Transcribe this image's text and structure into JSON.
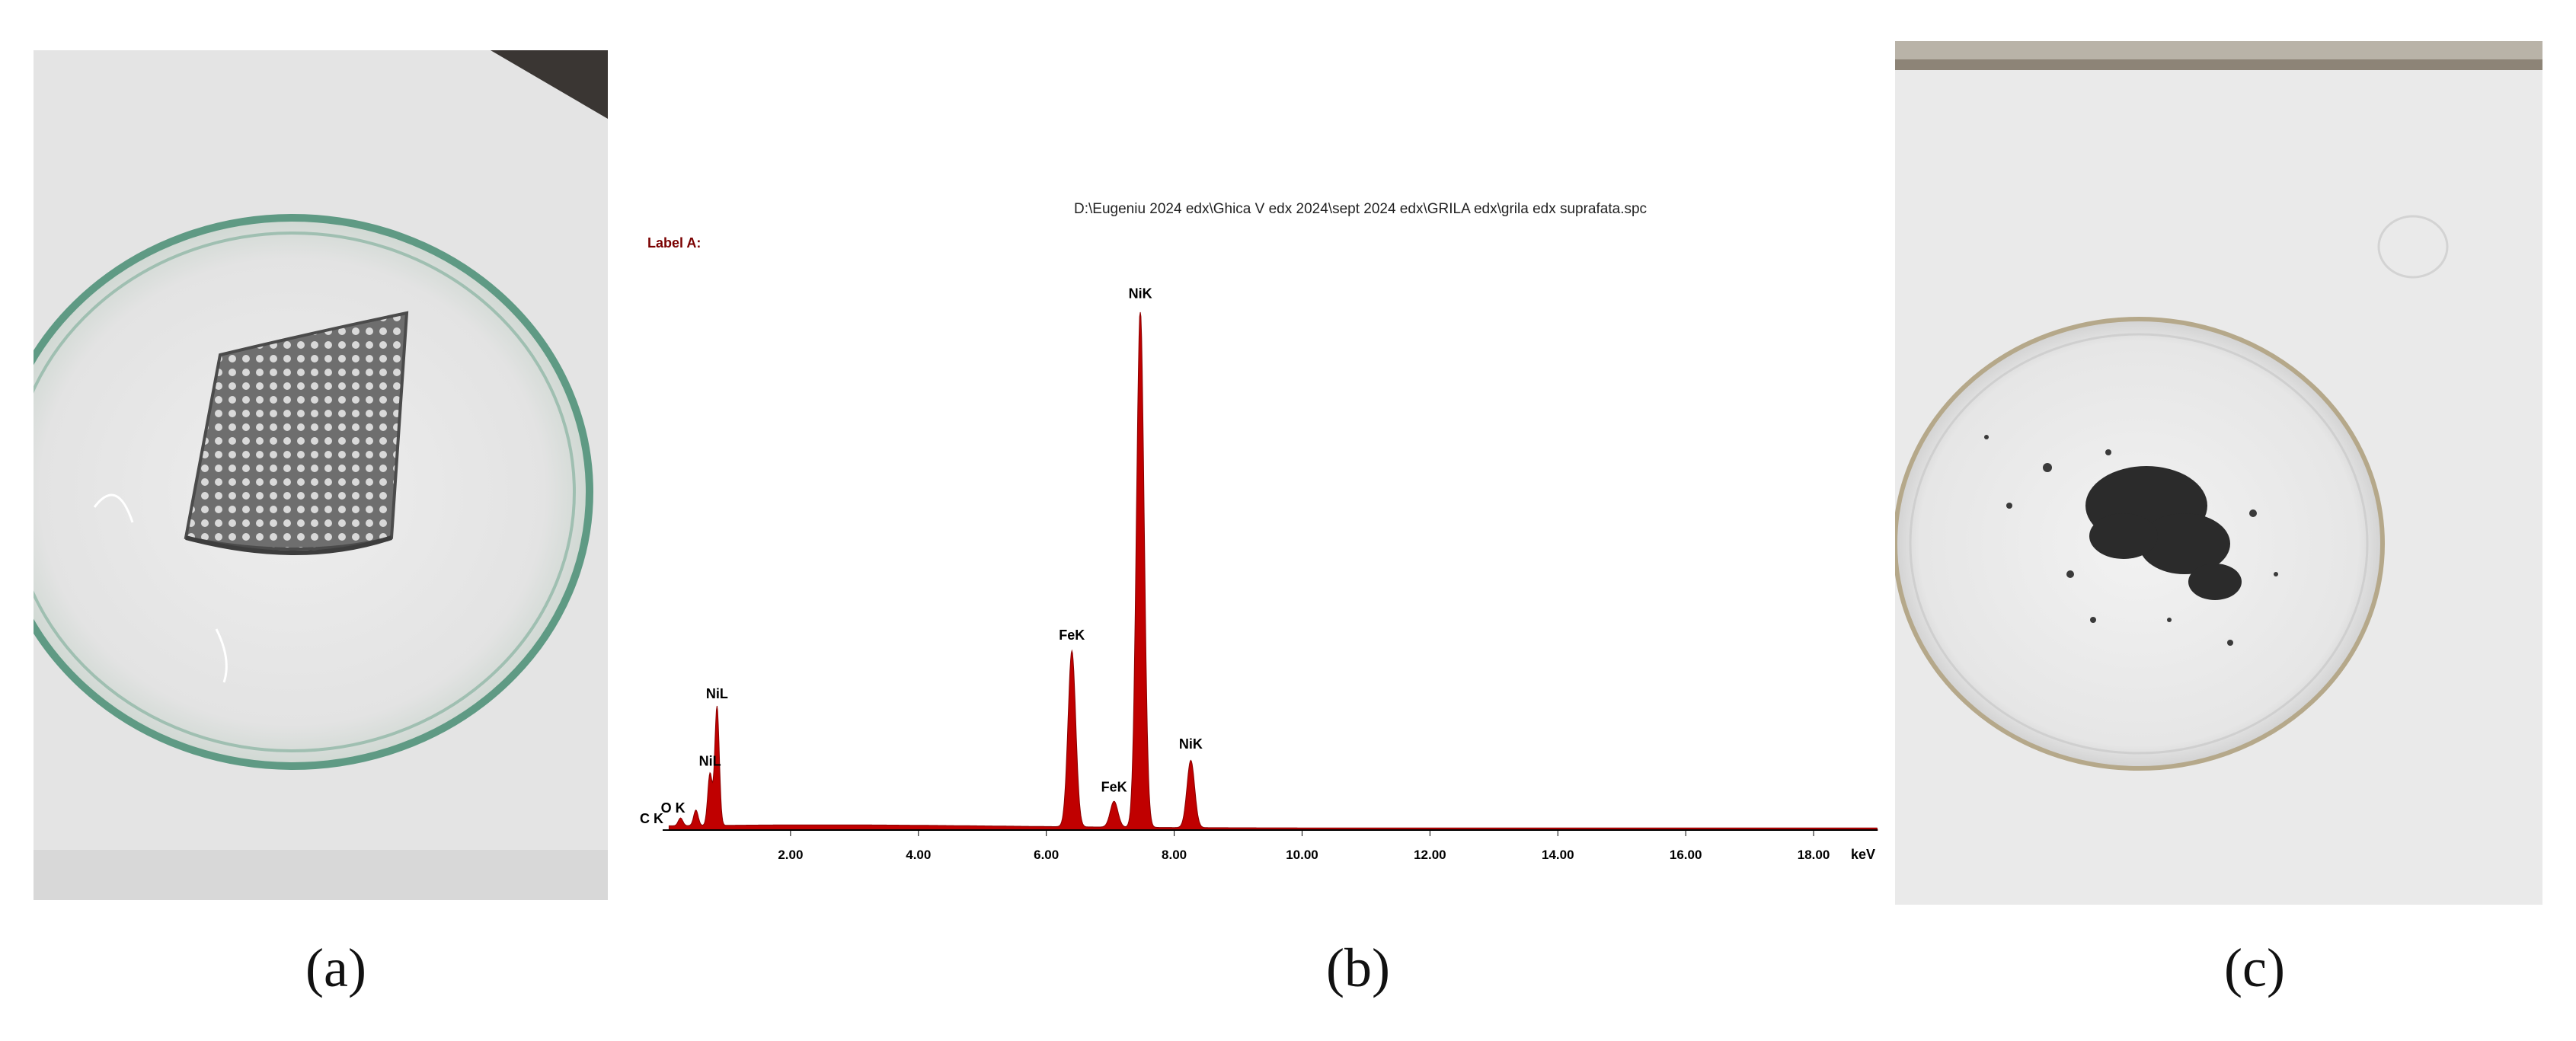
{
  "figure": {
    "captions": [
      "(a)",
      "(b)",
      "(c)"
    ]
  },
  "chart_data": {
    "type": "area",
    "title": "D:\\Eugeniu 2024 edx\\Ghica V edx 2024\\sept 2024 edx\\GRILA edx\\grila edx suprafata.spc",
    "label": "Label A:",
    "xlabel": "keV",
    "ylabel": "",
    "xlim": [
      0,
      19.0
    ],
    "ylim": [
      0,
      1.0
    ],
    "grid": false,
    "legend": "none",
    "x_ticks": [
      "2.00",
      "4.00",
      "6.00",
      "8.00",
      "10.00",
      "12.00",
      "14.00",
      "16.00",
      "18.00"
    ],
    "x_tick_values": [
      2,
      4,
      6,
      8,
      10,
      12,
      14,
      16,
      18
    ],
    "fill_color": "#c00000",
    "peaks": [
      {
        "label": "C K",
        "energy": 0.28,
        "intensity": 0.015
      },
      {
        "label": "O K",
        "energy": 0.52,
        "intensity": 0.03
      },
      {
        "label": "NiL",
        "energy": 0.74,
        "intensity": 0.1
      },
      {
        "label": "NiL",
        "energy": 0.85,
        "intensity": 0.23
      },
      {
        "label": "FeK",
        "energy": 6.4,
        "intensity": 0.34
      },
      {
        "label": "FeK",
        "energy": 7.06,
        "intensity": 0.05
      },
      {
        "label": "NiK",
        "energy": 7.47,
        "intensity": 1.0
      },
      {
        "label": "NiK",
        "energy": 8.26,
        "intensity": 0.13
      }
    ]
  }
}
